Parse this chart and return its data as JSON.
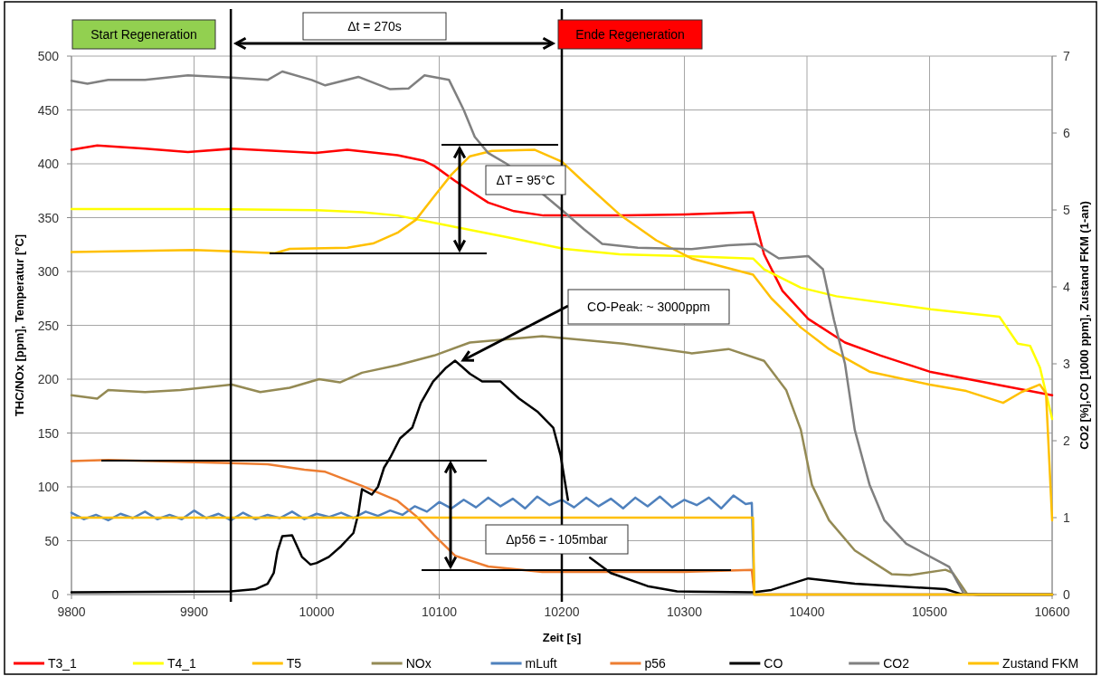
{
  "chart_data": {
    "type": "line",
    "xlabel": "Zeit [s]",
    "ylabel": "THC/NOx [ppm], Temperatur [°C]",
    "y2label": "CO2 [%],CO [1000 ppm], Zustand FKM (1-an)",
    "xlim": [
      9800,
      10600
    ],
    "xticks": [
      9800,
      9900,
      10000,
      10100,
      10200,
      10300,
      10400,
      10500,
      10600
    ],
    "ylim": [
      0,
      500
    ],
    "yticks": [
      0,
      50,
      100,
      150,
      200,
      250,
      300,
      350,
      400,
      450,
      500
    ],
    "y2lim": [
      0,
      7
    ],
    "y2ticks": [
      0,
      1,
      2,
      3,
      4,
      5,
      6,
      7
    ],
    "grid": true,
    "legend": "bottom",
    "marker": "none",
    "line_style": "solid",
    "ref_lines": [
      {
        "axis": "x",
        "value": 9930,
        "color": "#000000"
      },
      {
        "axis": "x",
        "value": 10200,
        "color": "#000000"
      }
    ],
    "annotations": [
      "Start Regeneration",
      "Ende Regeneration",
      "Δt = 270s",
      "ΔT = 95°C",
      "CO-Peak:  ~ 3000ppm",
      "Δp56 = - 105mbar"
    ],
    "series": [
      {
        "name": "T3_1",
        "color": "#ff0000",
        "x": [
          9800,
          9821,
          9860,
          9895,
          9931,
          9999,
          10025,
          10066,
          10087,
          10096,
          10113,
          10125,
          10140,
          10161,
          10185,
          10250,
          10300,
          10356,
          10365,
          10380,
          10401,
          10431,
          10460,
          10500,
          10550,
          10600
        ],
        "values": [
          413,
          417,
          414,
          411,
          414,
          410,
          413,
          408,
          403,
          398,
          384,
          375,
          364,
          356,
          352,
          352,
          353,
          355,
          316,
          282,
          256,
          234,
          222,
          207,
          196,
          185
        ]
      },
      {
        "name": "T4_1",
        "color": "#ffff00",
        "x": [
          9800,
          9900,
          10000,
          10037,
          10066,
          10110,
          10155,
          10202,
          10247,
          10306,
          10356,
          10365,
          10395,
          10424,
          10501,
          10557,
          10572,
          10582,
          10590,
          10600
        ],
        "values": [
          358,
          358,
          357,
          355,
          352,
          342,
          332,
          321,
          316,
          314,
          312,
          302,
          285,
          277,
          265,
          258,
          233,
          231,
          211,
          163
        ]
      },
      {
        "name": "T5",
        "color": "#ffc000",
        "x": [
          9800,
          9900,
          9966,
          9978,
          10025,
          10046,
          10066,
          10081,
          10096,
          10110,
          10125,
          10143,
          10178,
          10200,
          10218,
          10247,
          10277,
          10306,
          10356,
          10371,
          10395,
          10418,
          10451,
          10500,
          10530,
          10560,
          10575,
          10590,
          10595,
          10600
        ],
        "values": [
          318,
          320,
          317,
          321,
          322,
          326,
          336,
          348,
          370,
          390,
          407,
          412,
          413,
          402,
          383,
          353,
          329,
          312,
          297,
          275,
          248,
          228,
          207,
          195,
          189,
          178,
          188,
          195,
          187,
          69
        ]
      },
      {
        "name": "NOx",
        "color": "#948a54",
        "x": [
          9800,
          9821,
          9830,
          9860,
          9889,
          9931,
          9954,
          9978,
          10002,
          10019,
          10037,
          10066,
          10096,
          10125,
          10184,
          10250,
          10306,
          10336,
          10365,
          10383,
          10395,
          10404,
          10418,
          10439,
          10469,
          10484,
          10513,
          10519,
          10531,
          10600
        ],
        "values": [
          185,
          182,
          190,
          188,
          190,
          195,
          188,
          192,
          200,
          197,
          206,
          213,
          222,
          234,
          240,
          233,
          224,
          228,
          217,
          190,
          153,
          102,
          69,
          41,
          19,
          18,
          23,
          20,
          0,
          0
        ]
      },
      {
        "name": "mLuft",
        "color": "#4f81bd",
        "x": [
          9800,
          9810,
          9820,
          9830,
          9840,
          9850,
          9860,
          9870,
          9880,
          9890,
          9900,
          9910,
          9920,
          9930,
          9940,
          9950,
          9960,
          9970,
          9980,
          9990,
          10000,
          10010,
          10020,
          10030,
          10040,
          10050,
          10060,
          10070,
          10080,
          10090,
          10100,
          10110,
          10120,
          10130,
          10140,
          10150,
          10160,
          10170,
          10180,
          10190,
          10200,
          10210,
          10220,
          10230,
          10240,
          10250,
          10260,
          10270,
          10280,
          10290,
          10300,
          10310,
          10320,
          10330,
          10340,
          10350,
          10355,
          10357,
          10600
        ],
        "values": [
          76,
          70,
          74,
          69,
          75,
          71,
          77,
          70,
          74,
          70,
          78,
          71,
          75,
          69,
          76,
          70,
          74,
          71,
          77,
          70,
          75,
          72,
          76,
          71,
          77,
          73,
          78,
          74,
          82,
          77,
          86,
          80,
          88,
          81,
          90,
          82,
          89,
          80,
          91,
          83,
          88,
          81,
          90,
          82,
          89,
          80,
          90,
          82,
          91,
          81,
          88,
          83,
          90,
          80,
          92,
          84,
          85,
          0,
          0
        ]
      },
      {
        "name": "p56",
        "color": "#ed7d31",
        "x": [
          9800,
          9830,
          9930,
          9960,
          9990,
          10007,
          10037,
          10066,
          10081,
          10096,
          10113,
          10140,
          10184,
          10300,
          10355,
          10357,
          10600
        ],
        "values": [
          124,
          125,
          122,
          121,
          116,
          114,
          101,
          87,
          73,
          55,
          36,
          26,
          21,
          21,
          23,
          0,
          0
        ]
      },
      {
        "name": "CO",
        "color": "#000000",
        "axis": "y2",
        "x": [
          9800,
          9930,
          9950,
          9960,
          9965,
          9968,
          9972,
          9980,
          9988,
          9995,
          10000,
          10010,
          10020,
          10030,
          10034,
          10037,
          10045,
          10050,
          10055,
          10060,
          10068,
          10078,
          10085,
          10095,
          10105,
          10113,
          10125,
          10135,
          10150,
          10165,
          10180,
          10193,
          10199,
          10205,
          10211,
          10223,
          10240,
          10270,
          10294,
          10356,
          10371,
          10401,
          10439,
          10513,
          10525,
          10540,
          10600
        ],
        "values": [
          0.03,
          0.04,
          0.07,
          0.14,
          0.28,
          0.56,
          0.76,
          0.77,
          0.49,
          0.39,
          0.41,
          0.49,
          0.63,
          0.8,
          1.05,
          1.37,
          1.3,
          1.4,
          1.65,
          1.78,
          2.03,
          2.17,
          2.49,
          2.77,
          2.94,
          3.04,
          2.87,
          2.77,
          2.77,
          2.55,
          2.38,
          2.17,
          1.81,
          1.23,
          null,
          0.48,
          0.28,
          0.11,
          0.04,
          0.03,
          0.06,
          0.21,
          0.14,
          0.07,
          0.01,
          0,
          0
        ]
      },
      {
        "name": "CO2",
        "color": "#808080",
        "axis": "y2",
        "x": [
          9800,
          9813,
          9830,
          9860,
          9895,
          9931,
          9960,
          9972,
          9996,
          10007,
          10034,
          10060,
          10075,
          10088,
          10108,
          10120,
          10129,
          10140,
          10155,
          10200,
          10218,
          10233,
          10262,
          10306,
          10336,
          10358,
          10377,
          10401,
          10413,
          10422,
          10431,
          10439,
          10451,
          10463,
          10481,
          10516,
          10528,
          10540,
          10600
        ],
        "values": [
          6.68,
          6.64,
          6.69,
          6.69,
          6.75,
          6.72,
          6.69,
          6.8,
          6.69,
          6.62,
          6.73,
          6.57,
          6.58,
          6.75,
          6.69,
          6.3,
          5.95,
          5.74,
          5.6,
          5.0,
          4.75,
          4.56,
          4.51,
          4.49,
          4.54,
          4.56,
          4.37,
          4.4,
          4.23,
          3.57,
          3.0,
          2.14,
          1.43,
          0.97,
          0.66,
          0.36,
          0.01,
          0,
          0
        ]
      },
      {
        "name": "Zustand FKM",
        "color": "#ffc000",
        "axis": "y2",
        "x": [
          9800,
          10356,
          10357,
          10600
        ],
        "values": [
          1,
          1,
          0,
          0
        ]
      }
    ]
  }
}
